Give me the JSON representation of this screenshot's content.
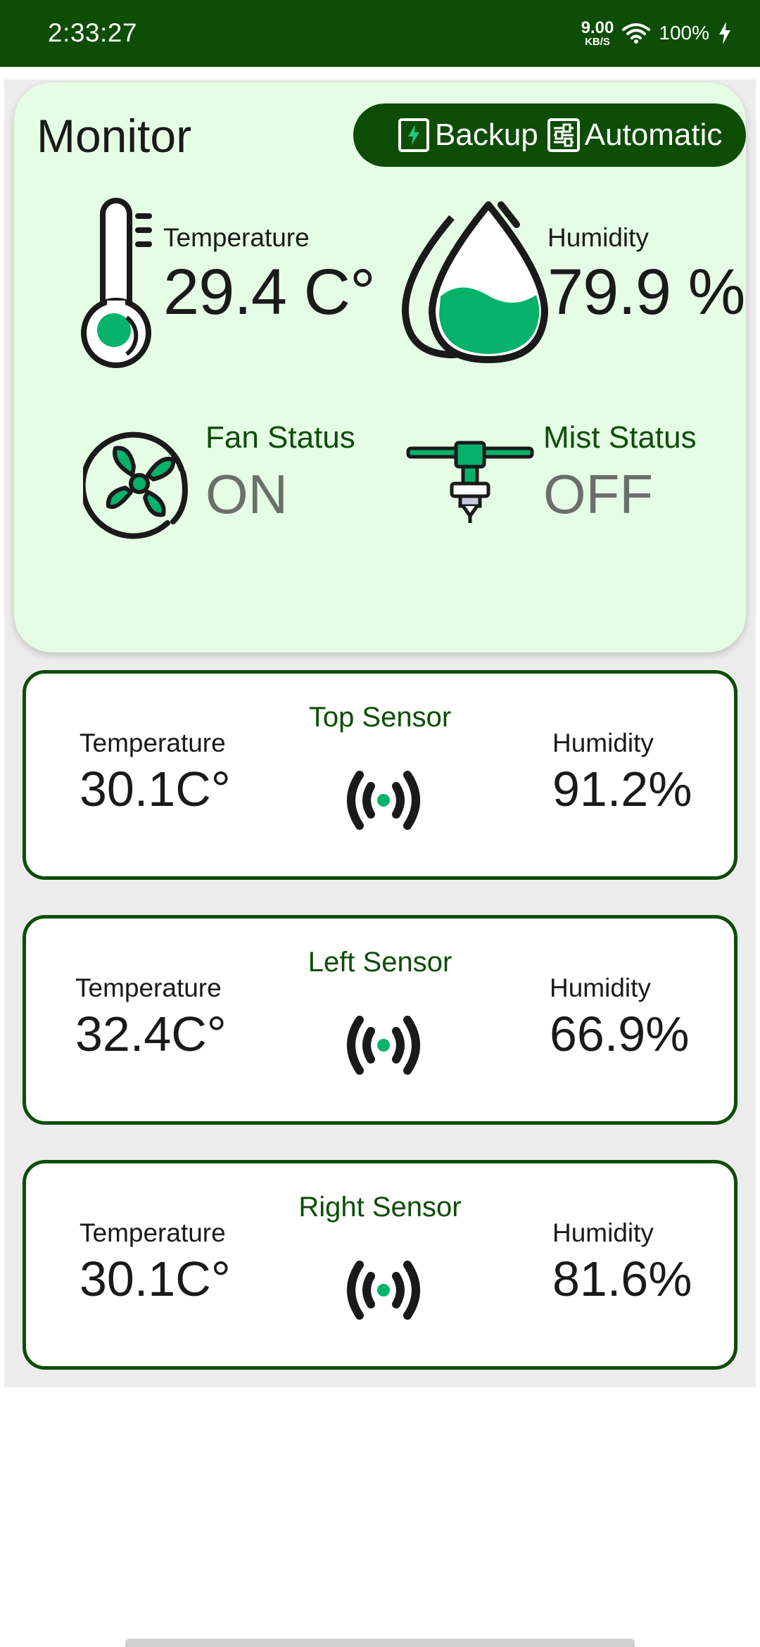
{
  "status_bar": {
    "time": "2:33:27",
    "net_speed_value": "9.00",
    "net_speed_unit": "KB/S",
    "battery": "100%",
    "icons": [
      "wifi-icon",
      "charging-icon"
    ]
  },
  "monitor": {
    "title": "Monitor",
    "backup_label": "Backup",
    "automatic_label": "Automatic",
    "temperature": {
      "label": "Temperature",
      "value": "29.4 C°"
    },
    "humidity": {
      "label": "Humidity",
      "value": "79.9 %"
    },
    "fan": {
      "label": "Fan Status",
      "value": "ON"
    },
    "mist": {
      "label": "Mist Status",
      "value": "OFF"
    }
  },
  "sensors": [
    {
      "title": "Top Sensor",
      "temp_label": "Temperature",
      "temp_value": "30.1C°",
      "hum_label": "Humidity",
      "hum_value": "91.2%"
    },
    {
      "title": "Left Sensor",
      "temp_label": "Temperature",
      "temp_value": "32.4C°",
      "hum_label": "Humidity",
      "hum_value": "66.9%"
    },
    {
      "title": "Right Sensor",
      "temp_label": "Temperature",
      "temp_value": "30.1C°",
      "hum_label": "Humidity",
      "hum_value": "81.6%"
    }
  ],
  "colors": {
    "brand_dark_green": "#0d4d06",
    "accent_green": "#07b26b",
    "card_background": "#e5fde4",
    "status_text_gray": "#6b6f6b"
  }
}
